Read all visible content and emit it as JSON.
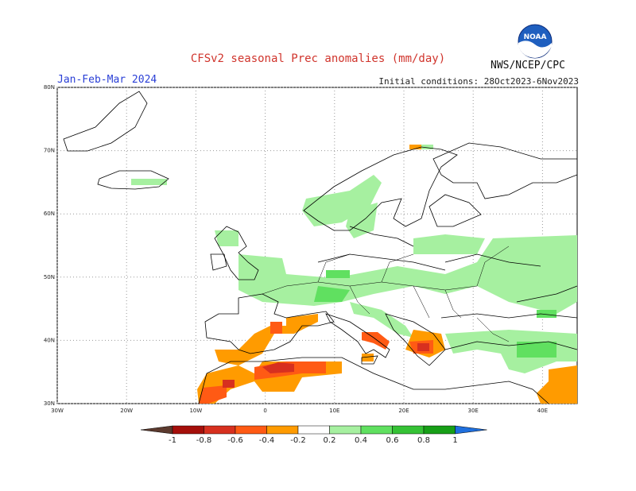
{
  "header": {
    "title": "CFSv2 seasonal Prec anomalies (mm/day)",
    "season": "Jan-Feb-Mar 2024",
    "initial_conditions": "Initial conditions: 28Oct2023-6Nov2023",
    "agency": "NWS/NCEP/CPC",
    "logo_text": "NOAA"
  },
  "map": {
    "lon_range": [
      -30,
      45
    ],
    "lat_range": [
      30,
      80
    ],
    "lat_labels": [
      "80N",
      "70N",
      "60N",
      "50N",
      "40N",
      "30N"
    ],
    "lon_labels": [
      "30W",
      "20W",
      "10W",
      "0",
      "10E",
      "20E",
      "30E",
      "40E"
    ],
    "grid_style": "dotted"
  },
  "colorbar": {
    "labels": [
      "-1",
      "-0.8",
      "-0.6",
      "-0.4",
      "-0.2",
      "0.2",
      "0.4",
      "0.6",
      "0.8",
      "1"
    ],
    "negative_colors": [
      "#5c3a2e",
      "#a50f0a",
      "#d7301f",
      "#ff5a14",
      "#ff9b00"
    ],
    "neutral_color": "#ffffff",
    "positive_colors": [
      "#a6f0a0",
      "#60e060",
      "#35c235",
      "#179f17",
      "#1f6fdd"
    ]
  }
}
